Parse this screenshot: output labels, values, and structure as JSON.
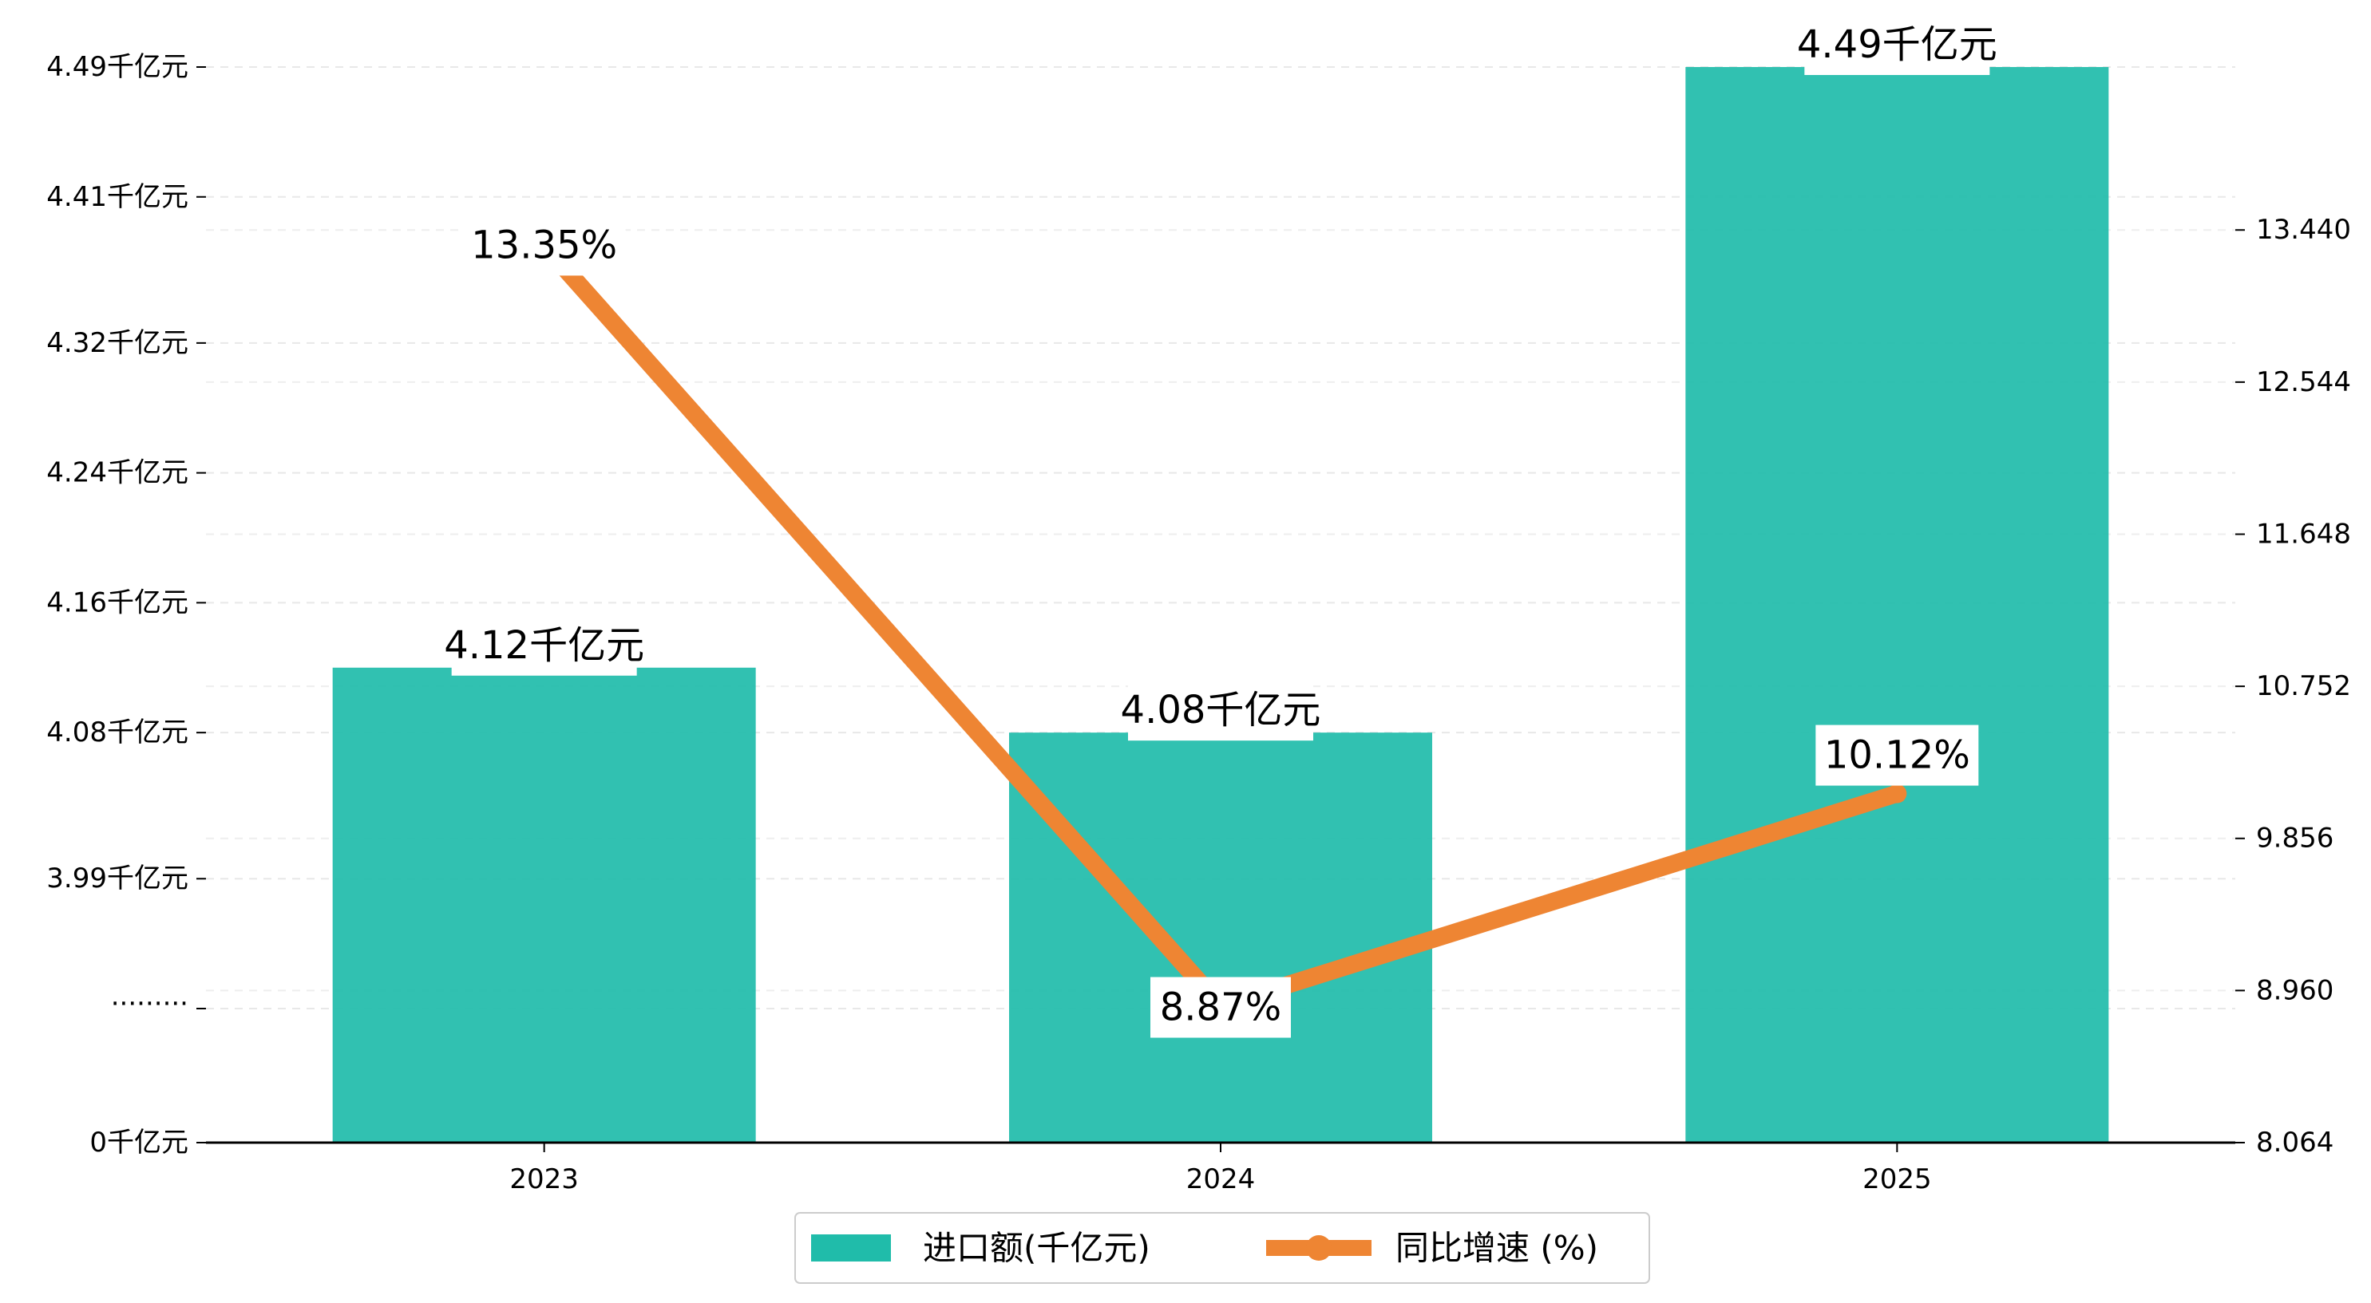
{
  "chart_data": {
    "type": "bar",
    "categories": [
      "2023",
      "2024",
      "2025"
    ],
    "series": [
      {
        "name": "进口额(千亿元)",
        "kind": "bar",
        "axis": "left",
        "color": "#20bcaa",
        "values": [
          4.12,
          4.08,
          4.49
        ],
        "labels": [
          "4.12千亿元",
          "4.08千亿元",
          "4.49千亿元"
        ]
      },
      {
        "name": "同比增速 (%)",
        "kind": "line",
        "axis": "right",
        "color": "#ee8533",
        "values": [
          13.35,
          8.87,
          10.12
        ],
        "labels": [
          "13.35%",
          "8.87%",
          "10.12%"
        ]
      }
    ],
    "left_axis": {
      "broken": true,
      "break_label": "·········",
      "tick_labels": [
        "0千亿元",
        "3.99千亿元",
        "4.08千亿元",
        "4.16千亿元",
        "4.24千亿元",
        "4.32千亿元",
        "4.41千亿元",
        "4.49千亿元"
      ],
      "tick_values": [
        0,
        3.99,
        4.08,
        4.16,
        4.24,
        4.32,
        4.41,
        4.49
      ],
      "ylim": [
        3.91,
        4.49
      ]
    },
    "right_axis": {
      "tick_labels": [
        "8.064",
        "8.960",
        "9.856",
        "10.752",
        "11.648",
        "12.544",
        "13.440"
      ],
      "tick_values": [
        8.064,
        8.96,
        9.856,
        10.752,
        11.648,
        12.544,
        13.44
      ],
      "ylim": [
        8.064,
        14.4
      ]
    },
    "grid": "horizontal-dashed",
    "legend_position": "bottom-center"
  }
}
